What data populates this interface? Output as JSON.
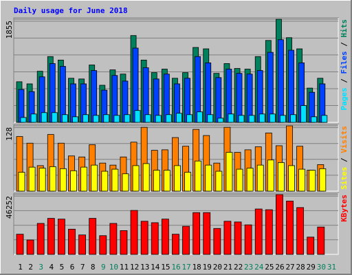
{
  "chart_data": [
    {
      "type": "bar",
      "title": "Daily usage for June 2018",
      "categories": [
        "1",
        "2",
        "3",
        "4",
        "5",
        "6",
        "7",
        "8",
        "9",
        "10",
        "11",
        "12",
        "13",
        "14",
        "15",
        "16",
        "17",
        "18",
        "19",
        "20",
        "21",
        "22",
        "23",
        "24",
        "25",
        "26",
        "27",
        "28",
        "29",
        "30",
        "31"
      ],
      "category_colors": [
        "#000000",
        "#000000",
        "#00805c",
        "#000000",
        "#000000",
        "#000000",
        "#000000",
        "#000000",
        "#00805c",
        "#00805c",
        "#000000",
        "#000000",
        "#000000",
        "#000000",
        "#000000",
        "#00805c",
        "#00805c",
        "#000000",
        "#000000",
        "#000000",
        "#000000",
        "#000000",
        "#00805c",
        "#00805c",
        "#000000",
        "#000000",
        "#000000",
        "#000000",
        "#000000",
        "#00805c",
        "#00805c"
      ],
      "legend_separator": " / ",
      "ylim": [
        0,
        1855
      ],
      "yticks": [
        1855
      ],
      "series": [
        {
          "name": "Hits",
          "color": "#00805c",
          "values": [
            731,
            693,
            920,
            1184,
            1121,
            794,
            781,
            1033,
            668,
            945,
            869,
            1562,
            1121,
            895,
            958,
            794,
            895,
            1348,
            1323,
            882,
            1058,
            970,
            958,
            1184,
            1474,
            1855,
            1524,
            1323,
            617,
            794,
            null
          ]
        },
        {
          "name": "Files",
          "color": "#0040ff",
          "values": [
            592,
            554,
            819,
            1058,
            1008,
            693,
            693,
            932,
            580,
            844,
            743,
            1336,
            983,
            781,
            869,
            693,
            794,
            1184,
            1071,
            806,
            958,
            882,
            869,
            932,
            1260,
            1487,
            1298,
            1071,
            542,
            693,
            null
          ]
        },
        {
          "name": "Pages",
          "color": "#00e0ff",
          "values": [
            88,
            151,
            176,
            176,
            139,
            101,
            139,
            126,
            139,
            126,
            139,
            214,
            139,
            126,
            139,
            164,
            139,
            189,
            139,
            76,
            151,
            126,
            126,
            151,
            151,
            126,
            139,
            302,
            101,
            126,
            null
          ]
        }
      ]
    },
    {
      "type": "bar",
      "ylim": [
        0,
        128
      ],
      "yticks": [
        128
      ],
      "legend_separator": " / ",
      "series": [
        {
          "name": "Visits",
          "color": "#ff8000",
          "values": [
            107,
            94,
            50,
            111,
            94,
            69,
            67,
            91,
            55,
            51,
            67,
            96,
            125,
            80,
            81,
            105,
            88,
            121,
            109,
            55,
            125,
            76,
            81,
            87,
            114,
            89,
            128,
            88,
            41,
            52,
            null
          ]
        },
        {
          "name": "Sites",
          "color": "#ffff00",
          "values": [
            37,
            47,
            45,
            48,
            44,
            40,
            47,
            51,
            39,
            43,
            34,
            50,
            54,
            41,
            41,
            50,
            37,
            59,
            51,
            39,
            76,
            43,
            45,
            51,
            61,
            56,
            50,
            43,
            41,
            44,
            null
          ]
        }
      ]
    },
    {
      "type": "bar",
      "ylim": [
        0,
        46252
      ],
      "yticks": [
        46252
      ],
      "series": [
        {
          "name": "KBytes",
          "color": "#ff0000",
          "values": [
            15596,
            11140,
            23951,
            27850,
            27293,
            19495,
            15039,
            27850,
            14482,
            23951,
            18381,
            33977,
            25622,
            24508,
            27293,
            15596,
            21723,
            32306,
            32306,
            20052,
            25622,
            25065,
            22837,
            35091,
            34534,
            46252,
            41218,
            36205,
            13368,
            21166,
            null
          ]
        }
      ]
    }
  ]
}
